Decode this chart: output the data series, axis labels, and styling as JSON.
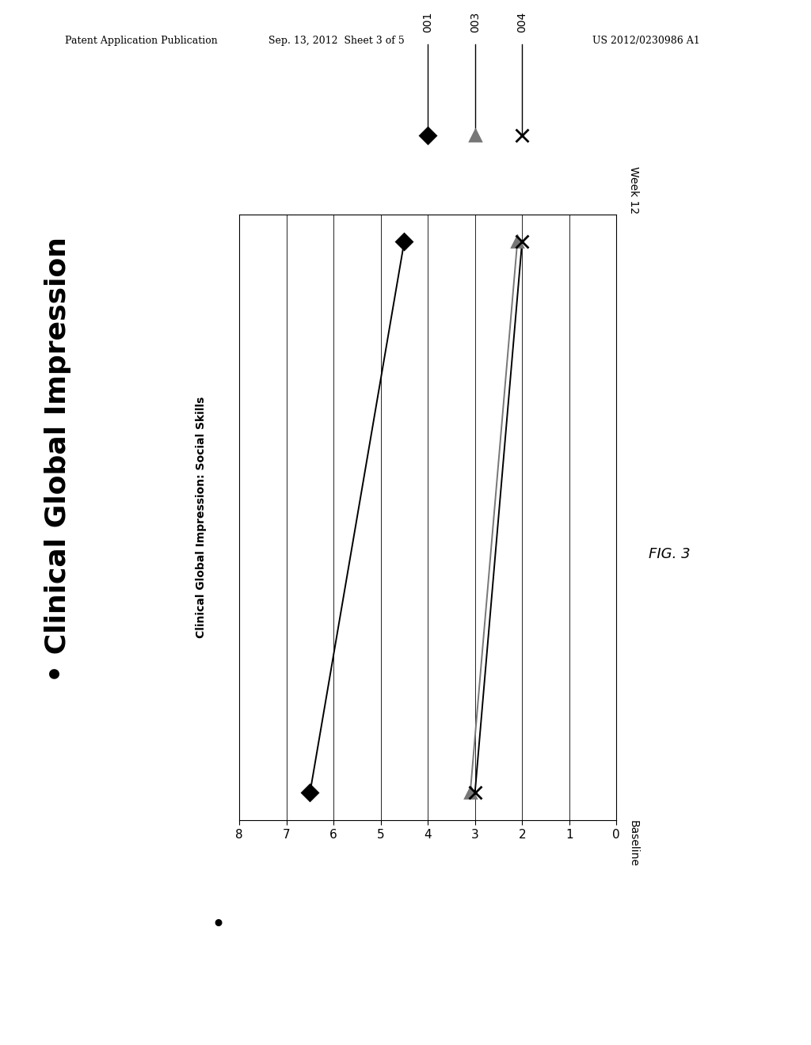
{
  "header_left": "Patent Application Publication",
  "header_center": "Sep. 13, 2012  Sheet 3 of 5",
  "header_right": "US 2012/0230986 A1",
  "fig_label": "FIG. 3",
  "chart_ylabel": "Clinical Global Impression: Social Skills",
  "x_label_bottom": "Baseline",
  "x_label_top": "Week 12",
  "bullet_text": "Clinical Global Impression",
  "series": [
    {
      "name": "001",
      "marker": "D",
      "color": "#000000",
      "mfc": "#000000",
      "baseline": 6.5,
      "week12": 4.5
    },
    {
      "name": "003",
      "marker": "^",
      "color": "#777777",
      "mfc": "#777777",
      "baseline": 3.1,
      "week12": 2.1
    },
    {
      "name": "004",
      "marker": "x",
      "color": "#000000",
      "mfc": "none",
      "baseline": 3.0,
      "week12": 2.0
    }
  ],
  "score_min": 0,
  "score_max": 8,
  "score_ticks": [
    8,
    7,
    6,
    5,
    4,
    3,
    2,
    1,
    0
  ],
  "background": "#ffffff",
  "legend_labels": [
    "001",
    "003",
    "004"
  ]
}
